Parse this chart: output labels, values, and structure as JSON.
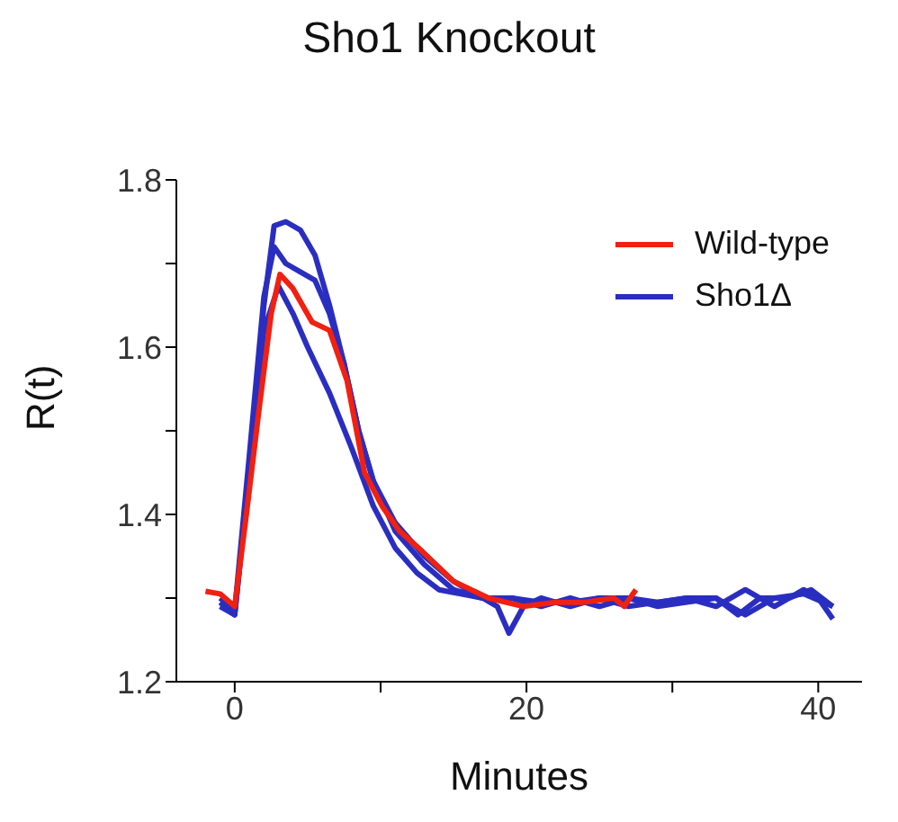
{
  "chart_data": {
    "type": "line",
    "title": "Sho1 Knockout",
    "xlabel": "Minutes",
    "ylabel": "R(t)",
    "xlim": [
      -4,
      43
    ],
    "xticks": [
      0,
      {
        "value": 10,
        "label": null
      },
      20,
      {
        "value": 30,
        "label": null
      },
      40
    ],
    "ylim": [
      1.2,
      1.8
    ],
    "yticks": [
      1.2,
      {
        "value": 1.3,
        "label": null
      },
      1.4,
      {
        "value": 1.5,
        "label": null
      },
      1.6,
      {
        "value": 1.7,
        "label": null
      },
      1.8
    ],
    "grid": false,
    "legend": "top right",
    "marker": "none",
    "line_style": "solid",
    "series": [
      {
        "name": "Wild-type",
        "color": "#f22010",
        "x": [
          -2,
          -1,
          0,
          0.8,
          1.7,
          2.5,
          3.1,
          4,
          5.3,
          6.5,
          7.7,
          8.9,
          10.1,
          11.3,
          12.6,
          15,
          17.4,
          19.8,
          22,
          24,
          26,
          26.7,
          27.5
        ],
        "values": [
          1.308,
          1.305,
          1.29,
          1.4,
          1.53,
          1.64,
          1.687,
          1.67,
          1.63,
          1.62,
          1.56,
          1.45,
          1.41,
          1.38,
          1.36,
          1.32,
          1.3,
          1.29,
          1.295,
          1.295,
          1.3,
          1.29,
          1.31
        ]
      },
      {
        "name": "Sho1Δ",
        "color": "#2a2ec0",
        "x": [
          -1,
          0,
          1,
          2,
          2.7,
          3.5,
          4.5,
          5.5,
          6.5,
          7.5,
          8.5,
          9.5,
          11,
          13,
          15,
          17,
          19,
          21,
          23,
          25,
          27,
          29,
          31,
          33,
          34.5,
          36,
          38,
          39.5,
          41
        ],
        "values": [
          1.29,
          1.28,
          1.45,
          1.65,
          1.745,
          1.75,
          1.74,
          1.71,
          1.65,
          1.58,
          1.5,
          1.44,
          1.39,
          1.35,
          1.32,
          1.3,
          1.3,
          1.295,
          1.295,
          1.3,
          1.3,
          1.29,
          1.295,
          1.3,
          1.28,
          1.3,
          1.3,
          1.31,
          1.29
        ]
      },
      {
        "color": "#2a2ec0",
        "x": [
          -1,
          0,
          1,
          2,
          2.7,
          3.5,
          4.5,
          5.5,
          6.5,
          7.5,
          8.5,
          9.5,
          11,
          13,
          15,
          17,
          19,
          21,
          23,
          25,
          27,
          29,
          31,
          33,
          35,
          37,
          39,
          40,
          41
        ],
        "values": [
          1.3,
          1.285,
          1.47,
          1.66,
          1.72,
          1.7,
          1.69,
          1.68,
          1.64,
          1.58,
          1.5,
          1.44,
          1.38,
          1.34,
          1.31,
          1.3,
          1.3,
          1.29,
          1.3,
          1.29,
          1.3,
          1.295,
          1.3,
          1.29,
          1.31,
          1.29,
          1.31,
          1.3,
          1.275
        ]
      },
      {
        "color": "#2a2ec0",
        "x": [
          -1,
          0,
          1,
          2,
          3,
          4,
          5,
          6.5,
          8,
          9.5,
          11,
          12.5,
          14,
          15.5,
          17,
          18,
          18.8,
          19.8,
          21,
          23,
          25,
          27,
          29,
          31,
          33,
          35,
          37,
          39,
          41
        ],
        "values": [
          1.295,
          1.28,
          1.45,
          1.62,
          1.673,
          1.64,
          1.6,
          1.545,
          1.48,
          1.41,
          1.36,
          1.33,
          1.31,
          1.305,
          1.3,
          1.29,
          1.258,
          1.29,
          1.3,
          1.29,
          1.3,
          1.29,
          1.295,
          1.3,
          1.3,
          1.28,
          1.3,
          1.305,
          1.29
        ]
      }
    ]
  }
}
